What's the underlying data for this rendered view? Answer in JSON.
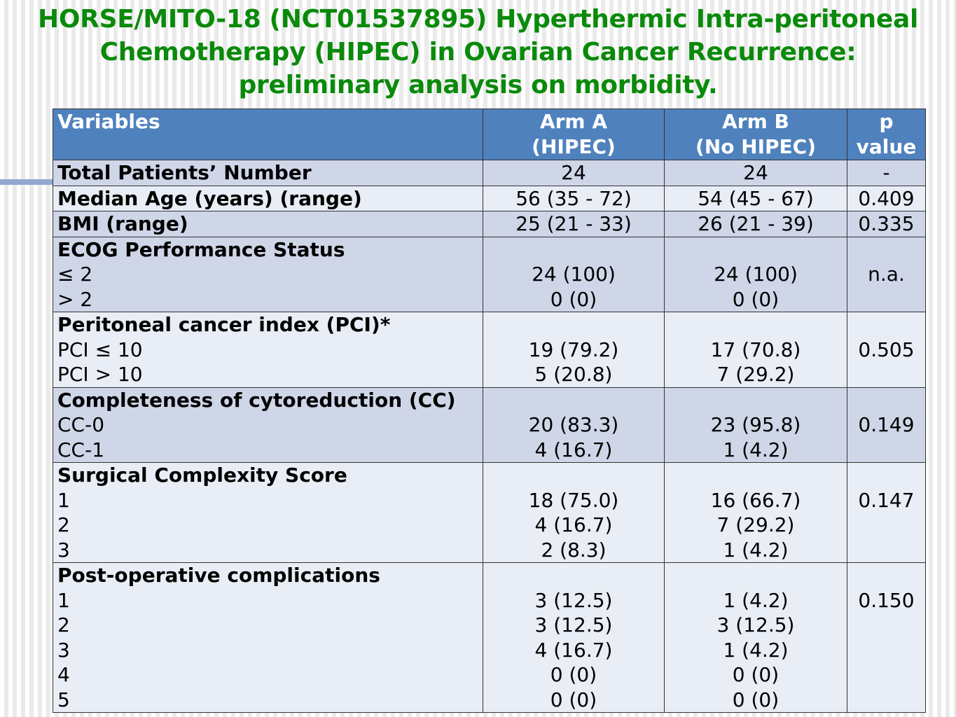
{
  "title": {
    "line1": "HORSE/MITO-18 (NCT01537895) Hyperthermic Intra-peritoneal",
    "line2": "Chemotherapy (HIPEC) in Ovarian Cancer Recurrence:",
    "line3": "preliminary analysis on morbidity."
  },
  "table": {
    "header": {
      "variables": "Variables",
      "arm_a_line1": "Arm A",
      "arm_a_line2": "(HIPEC)",
      "arm_b_line1": "Arm B",
      "arm_b_line2": "(No HIPEC)",
      "p_line1": "p",
      "p_line2": "value"
    },
    "total": {
      "label": "Total Patients’ Number",
      "a": "24",
      "b": "24",
      "p": "-"
    },
    "age": {
      "label": "Median Age (years) (range)",
      "a": "56 (35 - 72)",
      "b": "54 (45 - 67)",
      "p": "0.409"
    },
    "bmi": {
      "label": "BMI (range)",
      "a": "25 (21 - 33)",
      "b": "26 (21 - 39)",
      "p": "0.335"
    },
    "ecog": {
      "label": "ECOG Performance Status",
      "rows": [
        {
          "sub": "≤ 2",
          "a": "24 (100)",
          "b": "24 (100)"
        },
        {
          "sub": "> 2",
          "a": "0 (0)",
          "b": "0 (0)"
        }
      ],
      "p": "n.a."
    },
    "pci": {
      "label": "Peritoneal cancer index (PCI)*",
      "rows": [
        {
          "sub": "PCI ≤ 10",
          "a": "19 (79.2)",
          "b": "17 (70.8)"
        },
        {
          "sub": "PCI > 10",
          "a": "5 (20.8)",
          "b": "7 (29.2)"
        }
      ],
      "p": "0.505"
    },
    "cc": {
      "label": "Completeness of cytoreduction (CC)",
      "rows": [
        {
          "sub": "CC-0",
          "a": "20 (83.3)",
          "b": "23 (95.8)"
        },
        {
          "sub": "CC-1",
          "a": "4 (16.7)",
          "b": "1 (4.2)"
        }
      ],
      "p": "0.149"
    },
    "scs": {
      "label": "Surgical Complexity Score",
      "rows": [
        {
          "sub": "1",
          "a": "18 (75.0)",
          "b": "16 (66.7)"
        },
        {
          "sub": "2",
          "a": "4 (16.7)",
          "b": "7 (29.2)"
        },
        {
          "sub": "3",
          "a": "2 (8.3)",
          "b": "1 (4.2)"
        }
      ],
      "p": "0.147"
    },
    "postop": {
      "label": "Post-operative complications",
      "rows": [
        {
          "sub": "1",
          "a": "3 (12.5)",
          "b": "1 (4.2)"
        },
        {
          "sub": "2",
          "a": "3 (12.5)",
          "b": "3 (12.5)"
        },
        {
          "sub": "3",
          "a": "4 (16.7)",
          "b": "1 (4.2)"
        },
        {
          "sub": "4",
          "a": "0 (0)",
          "b": "0 (0)"
        },
        {
          "sub": "5",
          "a": "0 (0)",
          "b": "0 (0)"
        }
      ],
      "p": "0.150"
    }
  }
}
